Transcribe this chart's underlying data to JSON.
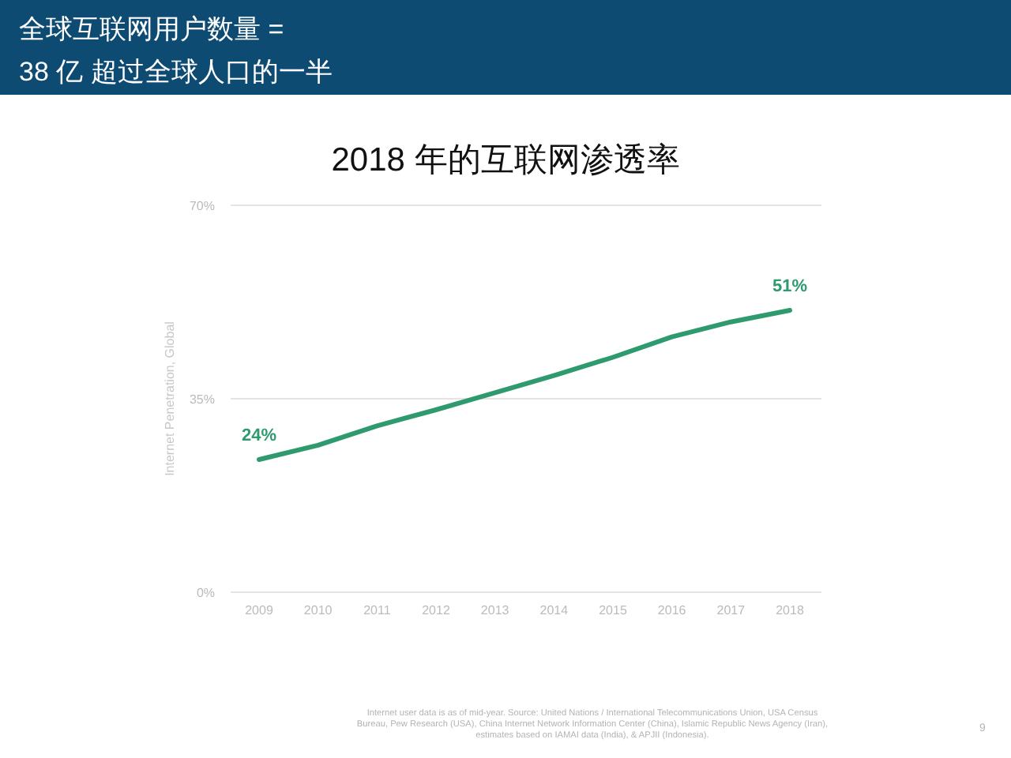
{
  "chart_data": {
    "type": "line",
    "title": "全球互联网用户数量 =\n38 亿 超过全球人口的一半",
    "subtitle": "2018 年的互联网渗透率",
    "ylabel": "Internet Penetration, Global",
    "categories": [
      "2009",
      "2010",
      "2011",
      "2012",
      "2013",
      "2014",
      "2015",
      "2016",
      "2017",
      "2018"
    ],
    "series": [
      {
        "color": "#2e9a6e",
        "values": [
          24,
          26.6,
          30.1,
          33,
          36.1,
          39.2,
          42.5,
          46.2,
          48.9,
          51
        ],
        "value_labels": [
          "24%",
          null,
          null,
          null,
          null,
          null,
          null,
          null,
          null,
          "51%"
        ]
      }
    ],
    "ylim": [
      0,
      70
    ],
    "yticks": [
      {
        "value": 0,
        "label": "0%"
      },
      {
        "value": 35,
        "label": "35%"
      },
      {
        "value": 70,
        "label": "70%"
      }
    ],
    "grid": "y",
    "marker": "none",
    "line_style": "solid",
    "annotations": [
      "Internet user data is as of mid-year. Source: United Nations / International Telecommunications Union, USA Census\nBureau, Pew Research (USA), China Internet Network Information Center (China), Islamic Republic News Agency (Iran),\nestimates based on IAMAI data (India), & APJII (Indonesia).",
      "9"
    ]
  }
}
